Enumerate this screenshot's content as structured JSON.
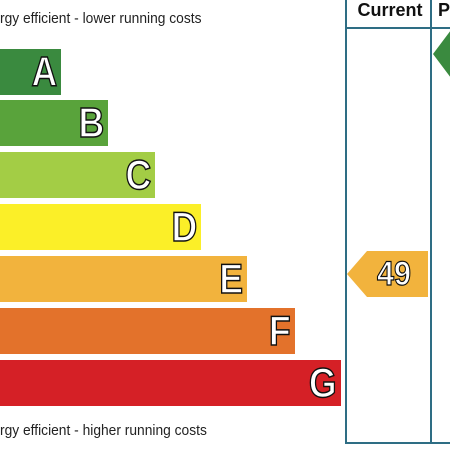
{
  "header": {
    "top_caption": "rgy efficient - lower running costs",
    "bottom_caption": "rgy efficient - higher running costs",
    "current_label": "Current",
    "potential_label": "P"
  },
  "bands": [
    {
      "letter": "A",
      "color": "#3a8a3f"
    },
    {
      "letter": "B",
      "color": "#59a33b"
    },
    {
      "letter": "C",
      "color": "#a3cd45"
    },
    {
      "letter": "D",
      "color": "#fbef28"
    },
    {
      "letter": "E",
      "color": "#f2b33d"
    },
    {
      "letter": "F",
      "color": "#e3722b"
    },
    {
      "letter": "G",
      "color": "#d52026"
    }
  ],
  "current_rating": {
    "value": "49",
    "band": "E",
    "color": "#f2b33d"
  },
  "potential_rating": {
    "band": "A",
    "color": "#3a8a3f"
  },
  "colors": {
    "frame": "#2e6d84"
  }
}
